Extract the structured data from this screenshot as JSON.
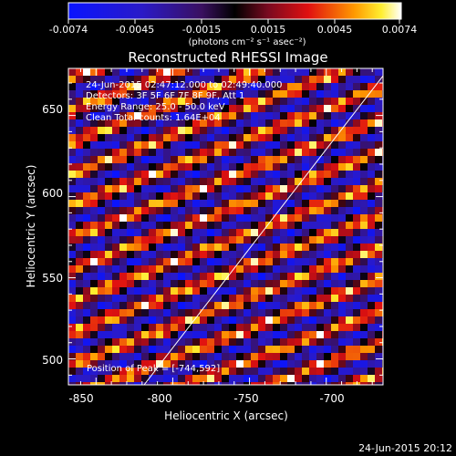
{
  "colorbar": {
    "ticks": [
      "-0.0074",
      "-0.0045",
      "-0.0015",
      "0.0015",
      "0.0045",
      "0.0074"
    ],
    "units_label": "(photons cm⁻² s⁻¹ asec⁻²)",
    "range": [
      -0.0074,
      0.0074
    ]
  },
  "plot": {
    "title": "Reconstructed RHESSI Image",
    "info_lines": [
      "24-Jun-2015 02:47:12.000 to 02:49:40.000",
      "Detectors: 3F 5F 6F 7F 8F 9F, Att 1",
      "Energy Range: 25.0 - 50.0 keV",
      "Clean     Total counts: 1.64E+04"
    ],
    "peak_label": "Position of Peak = [-744,592]",
    "xlabel": "Heliocentric X (arcsec)",
    "ylabel": "Heliocentric Y (arcsec)",
    "xlim": [
      -868,
      -663
    ],
    "ylim": [
      484,
      679
    ],
    "xticks": [
      "-850",
      "-800",
      "-750",
      "-700"
    ],
    "yticks": [
      "650",
      "600",
      "550",
      "500"
    ]
  },
  "footer": {
    "timestamp": "24-Jun-2015 20:12"
  }
}
